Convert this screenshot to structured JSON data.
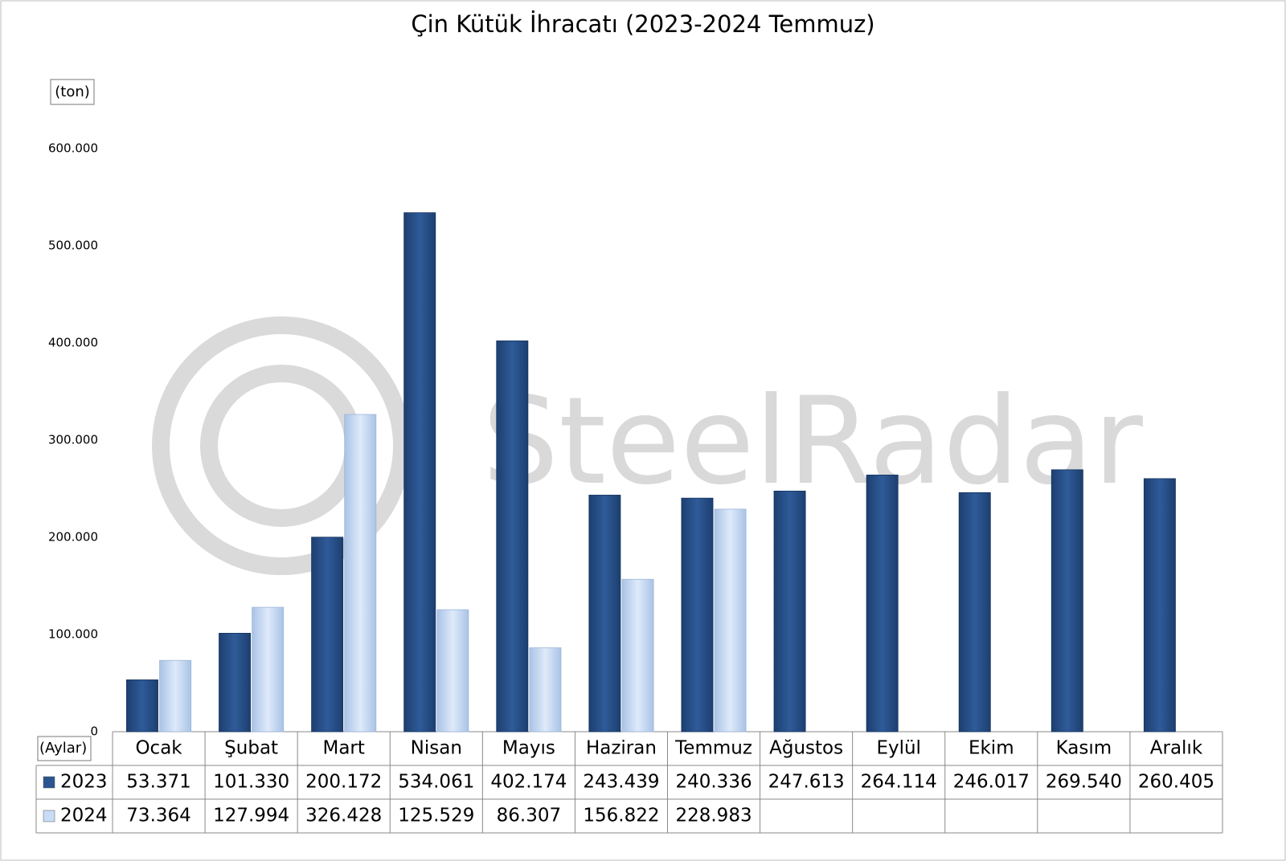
{
  "chart_data": {
    "type": "bar",
    "title": "Çin Kütük İhracatı (2023-2024 Temmuz)",
    "y_label": "(ton)",
    "x_label": "(Aylar)",
    "watermark": "SteelRadar",
    "categories": [
      "Ocak",
      "Şubat",
      "Mart",
      "Nisan",
      "Mayıs",
      "Haziran",
      "Temmuz",
      "Ağustos",
      "Eylül",
      "Ekim",
      "Kasım",
      "Aralık"
    ],
    "series": [
      {
        "name": "2023",
        "color": "#2b5590",
        "values": [
          53371,
          101330,
          200172,
          534061,
          402174,
          243439,
          240336,
          247613,
          264114,
          246017,
          269540,
          260405
        ],
        "value_labels": [
          "53.371",
          "101.330",
          "200.172",
          "534.061",
          "402.174",
          "243.439",
          "240.336",
          "247.613",
          "264.114",
          "246.017",
          "269.540",
          "260.405"
        ]
      },
      {
        "name": "2024",
        "color": "#c9dcf5",
        "values": [
          73364,
          127994,
          326428,
          125529,
          86307,
          156822,
          228983,
          null,
          null,
          null,
          null,
          null
        ],
        "value_labels": [
          "73.364",
          "127.994",
          "326.428",
          "125.529",
          "86.307",
          "156.822",
          "228.983",
          null,
          null,
          null,
          null,
          null
        ]
      }
    ],
    "ylim": [
      0,
      600000
    ],
    "yticks": [
      0,
      {
        "value": 100000,
        "label": "100.000"
      },
      {
        "value": 200000,
        "label": "200.000"
      },
      {
        "value": 300000,
        "label": "300.000"
      },
      {
        "value": 400000,
        "label": "400.000"
      },
      {
        "value": 500000,
        "label": "500.000"
      },
      {
        "value": 600000,
        "label": "600.000"
      }
    ]
  }
}
